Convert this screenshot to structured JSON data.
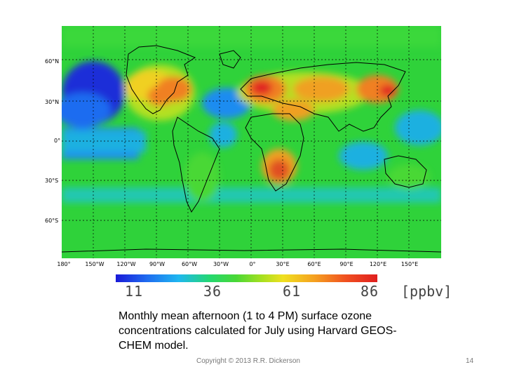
{
  "map": {
    "lat_labels": [
      "60°N",
      "30°N",
      "0°",
      "30°S",
      "60°S"
    ],
    "lon_labels": [
      "180°",
      "150°W",
      "120°W",
      "90°W",
      "60°W",
      "30°W",
      "0°",
      "30°E",
      "60°E",
      "90°E",
      "120°E",
      "150°E"
    ],
    "colors": {
      "deep_ocean": "#1a2fd8",
      "ocean_blue": "#1f8cf0",
      "cyan": "#1fd0c8",
      "green": "#2fd23a",
      "yellow_green": "#b4e020",
      "yellow": "#f0d020",
      "orange": "#f08020",
      "red": "#e02020"
    }
  },
  "colorbar": {
    "ticks": [
      "11",
      "36",
      "61",
      "86"
    ],
    "unit": "[ppbv]",
    "range": [
      11,
      86
    ]
  },
  "caption": "Monthly mean afternoon (1 to 4 PM) surface ozone concentrations calculated for July using Harvard GEOS-CHEM model.",
  "footer": {
    "copyright": "Copyright © 2013  R.R. Dickerson",
    "page_number": "14"
  }
}
